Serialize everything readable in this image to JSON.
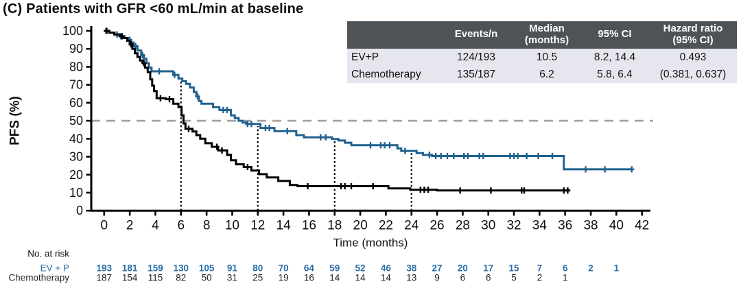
{
  "title": "(C) Patients with GFR <60 mL/min at baseline",
  "colors": {
    "evp_curve": "#21618e",
    "evp_risk_text": "#2a6da5",
    "chemo_curve": "#000000",
    "chemo_risk_text": "#222222",
    "median_ref_line": "#a3a3a3",
    "axis": "#000000",
    "table_header_bg": "#4d5357",
    "table_row_bg": "#e6e6ee"
  },
  "summary_table": {
    "headers": [
      [
        ""
      ],
      [
        "Events/n"
      ],
      [
        "Median",
        "(months)"
      ],
      [
        "95% CI"
      ],
      [
        "Hazard ratio",
        "(95% CI)"
      ]
    ],
    "rows": [
      {
        "name": "EV+P",
        "events_n": "124/193",
        "median": "10.5",
        "ci": "8.2, 14.4",
        "hazard_ratio": "0.493"
      },
      {
        "name": "Chemotherapy",
        "events_n": "135/187",
        "median": "6.2",
        "ci": "5.8, 6.4",
        "hazard_ratio": "(0.381, 0.637)"
      }
    ]
  },
  "chart_data": {
    "type": "line",
    "subtype": "kaplan-meier-step",
    "title": "",
    "xlabel": "Time (months)",
    "ylabel": "PFS (%)",
    "xlim": [
      0,
      42
    ],
    "ylim": [
      0,
      100
    ],
    "xticks": [
      0,
      2,
      4,
      6,
      8,
      10,
      12,
      14,
      16,
      18,
      20,
      22,
      24,
      26,
      28,
      30,
      32,
      34,
      36,
      38,
      40,
      42
    ],
    "yticks": [
      0,
      10,
      20,
      30,
      40,
      50,
      60,
      70,
      80,
      90,
      100
    ],
    "grid": false,
    "median_reference_line_y": 50,
    "dotted_vlines": [
      {
        "x": 6,
        "top": 72
      },
      {
        "x": 12,
        "top": 47
      },
      {
        "x": 18,
        "top": 39
      },
      {
        "x": 24,
        "top": 32.5
      }
    ],
    "series": [
      {
        "name": "EV+P",
        "median_months": 10.5,
        "steps": [
          [
            0,
            100
          ],
          [
            0.4,
            99
          ],
          [
            0.8,
            98
          ],
          [
            1.2,
            97
          ],
          [
            1.6,
            96
          ],
          [
            1.9,
            95
          ],
          [
            2.1,
            93.5
          ],
          [
            2.3,
            91.5
          ],
          [
            2.6,
            89
          ],
          [
            2.9,
            86.5
          ],
          [
            3.1,
            84.5
          ],
          [
            3.3,
            82
          ],
          [
            3.5,
            79.5
          ],
          [
            3.7,
            77.5
          ],
          [
            5.4,
            75.5
          ],
          [
            5.8,
            73.5
          ],
          [
            6.1,
            72
          ],
          [
            6.4,
            70.5
          ],
          [
            6.7,
            68.5
          ],
          [
            7.0,
            66
          ],
          [
            7.2,
            63.5
          ],
          [
            7.4,
            61
          ],
          [
            7.6,
            59.5
          ],
          [
            8.5,
            57.5
          ],
          [
            9.0,
            56
          ],
          [
            9.9,
            53
          ],
          [
            10.2,
            51.5
          ],
          [
            10.5,
            50
          ],
          [
            10.8,
            49
          ],
          [
            11.1,
            48.2
          ],
          [
            12.2,
            46
          ],
          [
            13.3,
            44.2
          ],
          [
            15.0,
            42
          ],
          [
            15.6,
            40.8
          ],
          [
            17.8,
            39.8
          ],
          [
            18.3,
            39
          ],
          [
            18.8,
            37.8
          ],
          [
            19.3,
            36.4
          ],
          [
            22.9,
            34.6
          ],
          [
            23.2,
            33.2
          ],
          [
            24.4,
            32
          ],
          [
            24.9,
            31
          ],
          [
            25.6,
            30.4
          ],
          [
            35.9,
            23
          ]
        ],
        "end_time": 41.2,
        "censors": [
          0.15,
          1.0,
          1.3,
          2.0,
          2.45,
          3.0,
          4.3,
          5.5,
          7.3,
          9.3,
          9.6,
          11.2,
          11.5,
          12.6,
          12.9,
          14.3,
          16.9,
          17.3,
          20.8,
          21.6,
          21.9,
          22.3,
          23.5,
          25.4,
          25.9,
          26.3,
          26.8,
          27.3,
          28.1,
          28.4,
          29.3,
          29.6,
          31.7,
          32.0,
          32.3,
          33.0,
          33.9,
          35.0,
          37.6,
          39.1,
          41.2
        ]
      },
      {
        "name": "Chemotherapy",
        "median_months": 6.2,
        "steps": [
          [
            0,
            100
          ],
          [
            0.4,
            99
          ],
          [
            0.8,
            98
          ],
          [
            1.2,
            97
          ],
          [
            1.5,
            96
          ],
          [
            1.8,
            94.5
          ],
          [
            2.0,
            92.5
          ],
          [
            2.2,
            90
          ],
          [
            2.4,
            87.5
          ],
          [
            2.6,
            85.5
          ],
          [
            2.8,
            83.5
          ],
          [
            3.0,
            82
          ],
          [
            3.2,
            79.5
          ],
          [
            3.4,
            77
          ],
          [
            3.6,
            73
          ],
          [
            3.75,
            69.5
          ],
          [
            3.9,
            66.5
          ],
          [
            4.1,
            62.5
          ],
          [
            4.8,
            62
          ],
          [
            5.4,
            59.5
          ],
          [
            5.8,
            57.5
          ],
          [
            6.05,
            53
          ],
          [
            6.2,
            48.5
          ],
          [
            6.35,
            45.5
          ],
          [
            6.9,
            44
          ],
          [
            7.2,
            42
          ],
          [
            7.5,
            40
          ],
          [
            7.9,
            37.5
          ],
          [
            8.4,
            35.5
          ],
          [
            8.9,
            33.5
          ],
          [
            9.6,
            31
          ],
          [
            9.9,
            28
          ],
          [
            10.3,
            25.8
          ],
          [
            10.9,
            24.3
          ],
          [
            11.5,
            22.3
          ],
          [
            12.1,
            20.3
          ],
          [
            12.7,
            18.5
          ],
          [
            13.6,
            16.5
          ],
          [
            14.5,
            14.3
          ],
          [
            15.1,
            13.6
          ],
          [
            22.2,
            12.4
          ],
          [
            23.9,
            11.6
          ],
          [
            26.0,
            11.2
          ]
        ],
        "end_time": 36.4,
        "censors": [
          0.2,
          1.4,
          2.1,
          3.1,
          4.4,
          5.1,
          6.6,
          8.8,
          9.2,
          11.2,
          15.9,
          18.5,
          18.8,
          19.3,
          21.0,
          24.7,
          25.0,
          25.3,
          27.8,
          30.2,
          32.6,
          32.8,
          35.9,
          36.2
        ]
      }
    ],
    "risk_table": {
      "label": "No. at risk",
      "rows": [
        {
          "name": "EV + P",
          "values": [
            193,
            181,
            159,
            130,
            105,
            91,
            80,
            70,
            64,
            59,
            52,
            46,
            38,
            27,
            20,
            17,
            15,
            7,
            6,
            2,
            1
          ]
        },
        {
          "name": "Chemotherapy",
          "values": [
            187,
            154,
            115,
            82,
            50,
            31,
            25,
            19,
            16,
            14,
            14,
            14,
            13,
            9,
            6,
            6,
            5,
            2,
            1
          ]
        }
      ]
    }
  }
}
